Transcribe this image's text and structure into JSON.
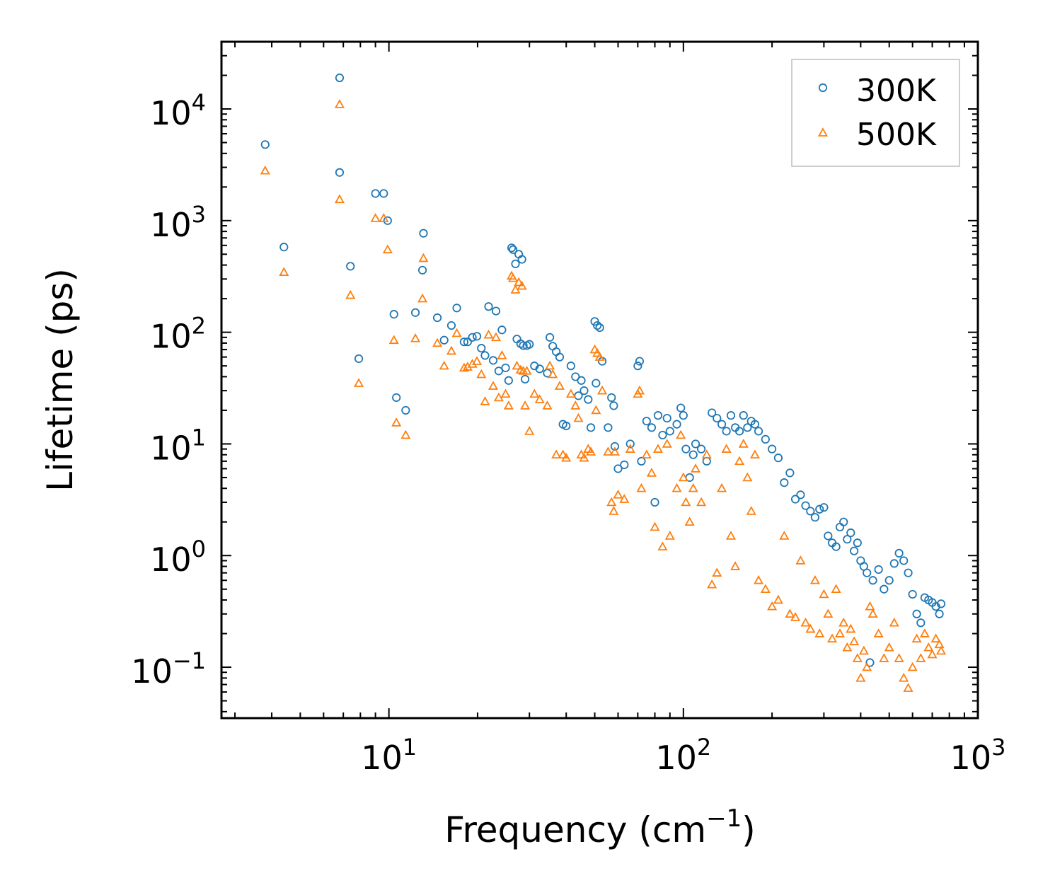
{
  "chart_data": {
    "type": "scatter",
    "title": "",
    "xlabel_main": "Frequency (cm",
    "xlabel_sup": "−1",
    "xlabel_end": ")",
    "ylabel": "Lifetime (ps)",
    "xscale": "log",
    "yscale": "log",
    "xlim": [
      2.7,
      1000
    ],
    "ylim": [
      0.035,
      40000
    ],
    "x_ticks": [
      {
        "base": "10",
        "exp": "1",
        "value": 10
      },
      {
        "base": "10",
        "exp": "2",
        "value": 100
      },
      {
        "base": "10",
        "exp": "3",
        "value": 1000
      }
    ],
    "y_ticks": [
      {
        "base": "10",
        "exp": "−1",
        "value": 0.1
      },
      {
        "base": "10",
        "exp": "0",
        "value": 1
      },
      {
        "base": "10",
        "exp": "1",
        "value": 10
      },
      {
        "base": "10",
        "exp": "2",
        "value": 100
      },
      {
        "base": "10",
        "exp": "3",
        "value": 1000
      },
      {
        "base": "10",
        "exp": "4",
        "value": 10000
      }
    ],
    "legend_position": "top-right",
    "series": [
      {
        "name": "300K",
        "marker": "circle",
        "color": "#1f77b4",
        "points": [
          [
            3.8,
            4800
          ],
          [
            4.4,
            580
          ],
          [
            6.8,
            19000
          ],
          [
            6.8,
            2700
          ],
          [
            7.4,
            390
          ],
          [
            7.9,
            58
          ],
          [
            9.0,
            1750
          ],
          [
            9.6,
            1750
          ],
          [
            9.9,
            1000
          ],
          [
            10.4,
            145
          ],
          [
            10.6,
            26
          ],
          [
            11.4,
            20
          ],
          [
            12.3,
            150
          ],
          [
            13.0,
            360
          ],
          [
            13.1,
            770
          ],
          [
            14.6,
            135
          ],
          [
            15.4,
            85
          ],
          [
            16.3,
            115
          ],
          [
            17.0,
            165
          ],
          [
            18.0,
            82
          ],
          [
            18.5,
            82
          ],
          [
            19.2,
            90
          ],
          [
            19.9,
            92
          ],
          [
            20.6,
            72
          ],
          [
            21.2,
            62
          ],
          [
            21.8,
            170
          ],
          [
            22.6,
            56
          ],
          [
            23.1,
            155
          ],
          [
            23.6,
            45
          ],
          [
            24.2,
            105
          ],
          [
            24.9,
            48
          ],
          [
            25.5,
            37
          ],
          [
            26.1,
            570
          ],
          [
            26.4,
            550
          ],
          [
            26.9,
            410
          ],
          [
            27.2,
            87
          ],
          [
            27.6,
            500
          ],
          [
            28.0,
            79
          ],
          [
            28.3,
            450
          ],
          [
            28.6,
            76
          ],
          [
            29.0,
            38
          ],
          [
            29.4,
            76
          ],
          [
            30.0,
            78
          ],
          [
            31.2,
            50
          ],
          [
            32.5,
            47
          ],
          [
            34.5,
            43
          ],
          [
            35.2,
            90
          ],
          [
            36.0,
            75
          ],
          [
            37.0,
            67
          ],
          [
            38.0,
            60
          ],
          [
            39.0,
            15
          ],
          [
            40.0,
            14.5
          ],
          [
            41.5,
            50
          ],
          [
            43.0,
            40
          ],
          [
            44.0,
            27
          ],
          [
            45.0,
            37
          ],
          [
            46.0,
            30
          ],
          [
            47.5,
            25
          ],
          [
            48.5,
            14
          ],
          [
            50.0,
            125
          ],
          [
            51.0,
            115
          ],
          [
            52.0,
            110
          ],
          [
            50.5,
            35
          ],
          [
            53.0,
            55
          ],
          [
            55.5,
            14
          ],
          [
            57.0,
            26
          ],
          [
            58.0,
            22
          ],
          [
            58.5,
            9.5
          ],
          [
            60.0,
            6
          ],
          [
            63.0,
            6.5
          ],
          [
            66.0,
            10
          ],
          [
            70.0,
            50
          ],
          [
            71.0,
            55
          ],
          [
            72.0,
            7
          ],
          [
            75.0,
            16
          ],
          [
            78.0,
            14
          ],
          [
            80.0,
            3
          ],
          [
            82.0,
            18
          ],
          [
            85.0,
            12
          ],
          [
            88.0,
            17
          ],
          [
            90.0,
            13
          ],
          [
            95.0,
            15
          ],
          [
            98.0,
            21
          ],
          [
            100.0,
            18
          ],
          [
            102.0,
            9
          ],
          [
            105.0,
            5
          ],
          [
            108.0,
            8
          ],
          [
            110.0,
            10
          ],
          [
            115.0,
            9
          ],
          [
            120.0,
            7
          ],
          [
            125.0,
            19
          ],
          [
            130.0,
            17
          ],
          [
            135.0,
            15
          ],
          [
            140.0,
            13
          ],
          [
            145.0,
            18
          ],
          [
            150.0,
            14
          ],
          [
            155.0,
            13
          ],
          [
            160.0,
            18
          ],
          [
            165.0,
            14
          ],
          [
            170.0,
            16
          ],
          [
            175.0,
            15
          ],
          [
            180.0,
            13
          ],
          [
            190.0,
            11
          ],
          [
            200.0,
            9
          ],
          [
            210.0,
            7.5
          ],
          [
            220.0,
            4.5
          ],
          [
            230.0,
            5.5
          ],
          [
            240.0,
            3.2
          ],
          [
            250.0,
            3.5
          ],
          [
            260.0,
            2.8
          ],
          [
            270.0,
            2.5
          ],
          [
            280.0,
            2.2
          ],
          [
            290.0,
            2.6
          ],
          [
            300.0,
            2.7
          ],
          [
            310.0,
            1.5
          ],
          [
            320.0,
            1.3
          ],
          [
            330.0,
            1.2
          ],
          [
            340.0,
            1.8
          ],
          [
            350.0,
            2.0
          ],
          [
            360.0,
            1.4
          ],
          [
            370.0,
            1.6
          ],
          [
            380.0,
            1.1
          ],
          [
            390.0,
            1.3
          ],
          [
            400.0,
            0.9
          ],
          [
            410.0,
            0.8
          ],
          [
            420.0,
            0.7
          ],
          [
            440.0,
            0.6
          ],
          [
            460.0,
            0.75
          ],
          [
            480.0,
            0.5
          ],
          [
            500.0,
            0.6
          ],
          [
            520.0,
            0.85
          ],
          [
            540.0,
            1.05
          ],
          [
            560.0,
            0.9
          ],
          [
            580.0,
            0.7
          ],
          [
            600.0,
            0.45
          ],
          [
            620.0,
            0.3
          ],
          [
            640.0,
            0.25
          ],
          [
            660.0,
            0.42
          ],
          [
            680.0,
            0.4
          ],
          [
            700.0,
            0.38
          ],
          [
            720.0,
            0.35
          ],
          [
            740.0,
            0.3
          ],
          [
            750.0,
            0.37
          ],
          [
            430.0,
            0.11
          ]
        ]
      },
      {
        "name": "500K",
        "marker": "triangle",
        "color": "#ff7f0e",
        "points": [
          [
            3.8,
            2800
          ],
          [
            4.4,
            345
          ],
          [
            6.8,
            11000
          ],
          [
            6.8,
            1550
          ],
          [
            7.4,
            215
          ],
          [
            7.9,
            35
          ],
          [
            9.0,
            1050
          ],
          [
            9.6,
            1050
          ],
          [
            9.9,
            550
          ],
          [
            10.4,
            85
          ],
          [
            10.6,
            15.5
          ],
          [
            11.4,
            12
          ],
          [
            12.3,
            88
          ],
          [
            13.0,
            200
          ],
          [
            13.1,
            460
          ],
          [
            14.6,
            80
          ],
          [
            15.4,
            50
          ],
          [
            16.3,
            68
          ],
          [
            17.0,
            98
          ],
          [
            18.0,
            48
          ],
          [
            18.5,
            49
          ],
          [
            19.2,
            52
          ],
          [
            19.9,
            55
          ],
          [
            20.6,
            42
          ],
          [
            21.2,
            24
          ],
          [
            21.8,
            95
          ],
          [
            22.6,
            33
          ],
          [
            23.1,
            90
          ],
          [
            23.6,
            26
          ],
          [
            24.2,
            62
          ],
          [
            24.9,
            28
          ],
          [
            25.5,
            22
          ],
          [
            26.1,
            320
          ],
          [
            26.4,
            305
          ],
          [
            26.9,
            240
          ],
          [
            27.2,
            50
          ],
          [
            27.6,
            280
          ],
          [
            28.0,
            46
          ],
          [
            28.3,
            260
          ],
          [
            28.6,
            45
          ],
          [
            29.0,
            22
          ],
          [
            29.4,
            45
          ],
          [
            30.0,
            13
          ],
          [
            31.2,
            28
          ],
          [
            32.5,
            25
          ],
          [
            34.5,
            22
          ],
          [
            35.2,
            50
          ],
          [
            36.0,
            42
          ],
          [
            37.0,
            8
          ],
          [
            38.0,
            33
          ],
          [
            39.0,
            8
          ],
          [
            40.0,
            7.5
          ],
          [
            41.5,
            28
          ],
          [
            43.0,
            22
          ],
          [
            44.0,
            17
          ],
          [
            45.0,
            8
          ],
          [
            46.0,
            7.5
          ],
          [
            47.5,
            9
          ],
          [
            48.5,
            8.5
          ],
          [
            50.0,
            70
          ],
          [
            51.0,
            65
          ],
          [
            52.0,
            60
          ],
          [
            50.5,
            20
          ],
          [
            53.0,
            30
          ],
          [
            55.5,
            8.5
          ],
          [
            57.0,
            3
          ],
          [
            58.0,
            2.5
          ],
          [
            58.5,
            8.5
          ],
          [
            60.0,
            3.5
          ],
          [
            63.0,
            3.2
          ],
          [
            66.0,
            9
          ],
          [
            70.0,
            28
          ],
          [
            71.0,
            30
          ],
          [
            72.0,
            4
          ],
          [
            75.0,
            8
          ],
          [
            78.0,
            5.5
          ],
          [
            80.0,
            1.8
          ],
          [
            82.0,
            9
          ],
          [
            85.0,
            1.2
          ],
          [
            88.0,
            10
          ],
          [
            90.0,
            1.5
          ],
          [
            95.0,
            4
          ],
          [
            98.0,
            12
          ],
          [
            100.0,
            5
          ],
          [
            102.0,
            3
          ],
          [
            105.0,
            2
          ],
          [
            108.0,
            4
          ],
          [
            110.0,
            6
          ],
          [
            115.0,
            3
          ],
          [
            120.0,
            8
          ],
          [
            125.0,
            0.55
          ],
          [
            130.0,
            0.7
          ],
          [
            135.0,
            4
          ],
          [
            140.0,
            9
          ],
          [
            145.0,
            1.5
          ],
          [
            150.0,
            0.8
          ],
          [
            155.0,
            7
          ],
          [
            160.0,
            10
          ],
          [
            165.0,
            5
          ],
          [
            170.0,
            2.5
          ],
          [
            175.0,
            8
          ],
          [
            180.0,
            0.6
          ],
          [
            190.0,
            0.5
          ],
          [
            200.0,
            0.35
          ],
          [
            210.0,
            0.4
          ],
          [
            220.0,
            1.5
          ],
          [
            230.0,
            0.3
          ],
          [
            240.0,
            0.28
          ],
          [
            250.0,
            0.9
          ],
          [
            260.0,
            0.25
          ],
          [
            270.0,
            0.22
          ],
          [
            280.0,
            0.6
          ],
          [
            290.0,
            0.2
          ],
          [
            300.0,
            0.45
          ],
          [
            310.0,
            0.3
          ],
          [
            320.0,
            0.18
          ],
          [
            330.0,
            0.5
          ],
          [
            340.0,
            0.2
          ],
          [
            350.0,
            0.25
          ],
          [
            360.0,
            0.15
          ],
          [
            370.0,
            0.22
          ],
          [
            380.0,
            0.17
          ],
          [
            390.0,
            0.12
          ],
          [
            400.0,
            0.08
          ],
          [
            410.0,
            0.14
          ],
          [
            420.0,
            0.1
          ],
          [
            440.0,
            0.3
          ],
          [
            460.0,
            0.2
          ],
          [
            480.0,
            0.12
          ],
          [
            500.0,
            0.15
          ],
          [
            520.0,
            0.25
          ],
          [
            540.0,
            0.12
          ],
          [
            560.0,
            0.08
          ],
          [
            580.0,
            0.065
          ],
          [
            600.0,
            0.1
          ],
          [
            620.0,
            0.18
          ],
          [
            640.0,
            0.12
          ],
          [
            660.0,
            0.2
          ],
          [
            680.0,
            0.15
          ],
          [
            700.0,
            0.13
          ],
          [
            720.0,
            0.18
          ],
          [
            740.0,
            0.16
          ],
          [
            750.0,
            0.14
          ],
          [
            430.0,
            0.35
          ]
        ]
      }
    ]
  }
}
